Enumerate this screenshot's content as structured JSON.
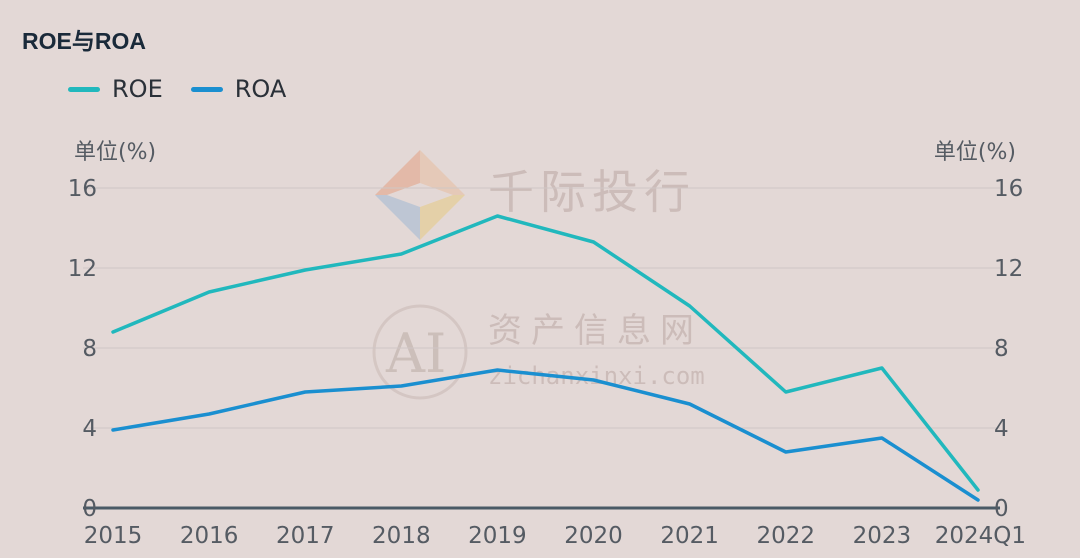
{
  "title": "ROE与ROA",
  "unit_left": "单位(%)",
  "unit_right": "单位(%)",
  "watermark": {
    "brand_cn": "千际投行",
    "brand2_cn": "资产信息网",
    "brand2_url": "zichanxinxi.com",
    "logo_text": "AI"
  },
  "chart_data": {
    "type": "line",
    "title": "ROE与ROA",
    "categories": [
      "2015",
      "2016",
      "2017",
      "2018",
      "2019",
      "2020",
      "2021",
      "2022",
      "2023",
      "2024Q1"
    ],
    "series": [
      {
        "name": "ROE",
        "color": "#21b8bd",
        "values": [
          8.8,
          10.8,
          11.9,
          12.7,
          14.6,
          13.3,
          10.1,
          5.8,
          7.0,
          0.9
        ]
      },
      {
        "name": "ROA",
        "color": "#1a8fd0",
        "values": [
          3.9,
          4.7,
          5.8,
          6.1,
          6.9,
          6.4,
          5.2,
          2.8,
          3.5,
          0.4
        ]
      }
    ],
    "yticks": [
      0,
      4,
      8,
      12,
      16
    ],
    "ylim": [
      0,
      16
    ],
    "grid": true,
    "legend_position": "top-left"
  }
}
